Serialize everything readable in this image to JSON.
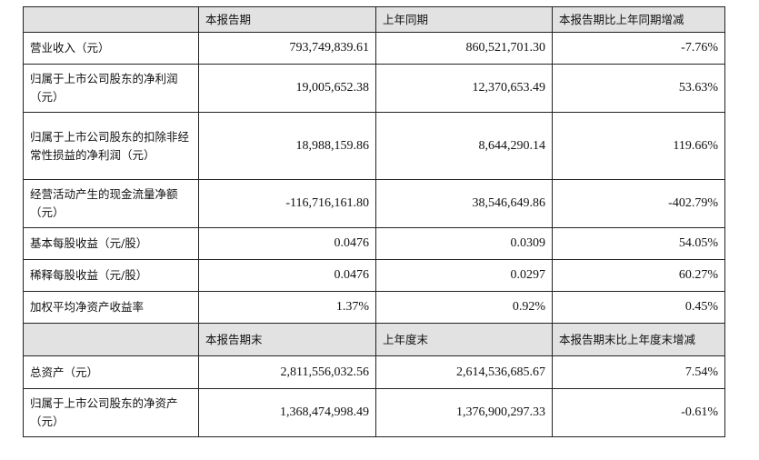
{
  "header1": {
    "blank": "",
    "col1": "本报告期",
    "col2": "上年同期",
    "col3": "本报告期比上年同期增减"
  },
  "rows1": [
    {
      "label": "营业收入（元）",
      "current": "793,749,839.61",
      "prior": "860,521,701.30",
      "change": "-7.76%"
    },
    {
      "label": "归属于上市公司股东的净利润（元）",
      "current": "19,005,652.38",
      "prior": "12,370,653.49",
      "change": "53.63%"
    },
    {
      "label": "归属于上市公司股东的扣除非经常性损益的净利润（元）",
      "current": "18,988,159.86",
      "prior": "8,644,290.14",
      "change": "119.66%"
    },
    {
      "label": "经营活动产生的现金流量净额（元）",
      "current": "-116,716,161.80",
      "prior": "38,546,649.86",
      "change": "-402.79%"
    },
    {
      "label": "基本每股收益（元/股）",
      "current": "0.0476",
      "prior": "0.0309",
      "change": "54.05%"
    },
    {
      "label": "稀释每股收益（元/股）",
      "current": "0.0476",
      "prior": "0.0297",
      "change": "60.27%"
    },
    {
      "label": "加权平均净资产收益率",
      "current": "1.37%",
      "prior": "0.92%",
      "change": "0.45%"
    }
  ],
  "header2": {
    "blank": "",
    "col1": "本报告期末",
    "col2": "上年度末",
    "col3": "本报告期末比上年度末增减"
  },
  "rows2": [
    {
      "label": "总资产（元）",
      "current": "2,811,556,032.56",
      "prior": "2,614,536,685.67",
      "change": "7.54%"
    },
    {
      "label": "归属于上市公司股东的净资产（元）",
      "current": "1,368,474,998.49",
      "prior": "1,376,900,297.33",
      "change": "-0.61%"
    }
  ]
}
